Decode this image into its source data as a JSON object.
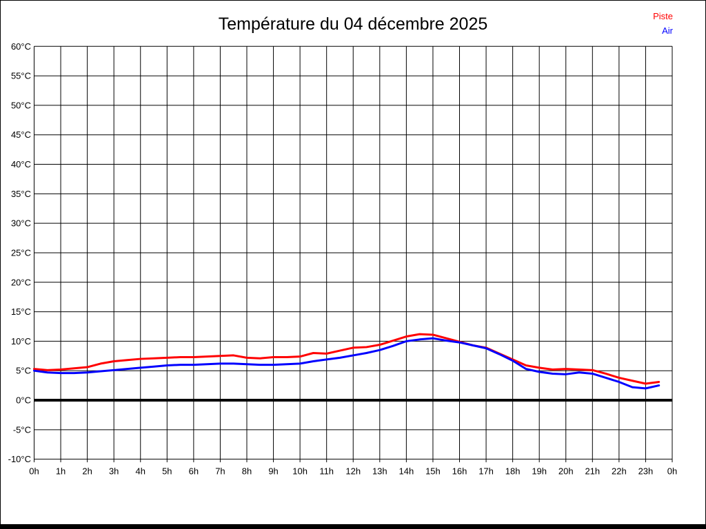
{
  "title": "Température du 04 décembre 2025",
  "legend": [
    {
      "label": "Piste",
      "color": "#ff0000"
    },
    {
      "label": "Air",
      "color": "#0000ff"
    }
  ],
  "colors": {
    "grid": "#000000",
    "zero_line": "#000000",
    "background": "#ffffff",
    "text": "#000000"
  },
  "chart_data": {
    "type": "line",
    "title": "Température du 04 décembre 2025",
    "xlabel": "",
    "ylabel": "",
    "xlim": [
      0,
      24
    ],
    "ylim": [
      -10,
      60
    ],
    "y_tick_step": 5,
    "grid": "on",
    "zero_line_bold": true,
    "legend_position": "top-right",
    "x_tick_labels": [
      "0h",
      "1h",
      "2h",
      "3h",
      "4h",
      "5h",
      "6h",
      "7h",
      "8h",
      "9h",
      "10h",
      "11h",
      "12h",
      "13h",
      "14h",
      "15h",
      "16h",
      "17h",
      "18h",
      "19h",
      "20h",
      "21h",
      "22h",
      "23h",
      "0h"
    ],
    "y_tick_labels": [
      "60°C",
      "55°C",
      "50°C",
      "45°C",
      "40°C",
      "35°C",
      "30°C",
      "25°C",
      "20°C",
      "15°C",
      "10°C",
      "5°C",
      "0°C",
      "-5°C",
      "-10°C"
    ],
    "x": [
      0,
      0.5,
      1,
      1.5,
      2,
      2.5,
      3,
      3.5,
      4,
      4.5,
      5,
      5.5,
      6,
      6.5,
      7,
      7.5,
      8,
      8.5,
      9,
      9.5,
      10,
      10.5,
      11,
      11.5,
      12,
      12.5,
      13,
      13.5,
      14,
      14.5,
      15,
      15.5,
      16,
      16.5,
      17,
      17.5,
      18,
      18.5,
      19,
      19.5,
      20,
      20.5,
      21,
      21.5,
      22,
      22.5,
      23,
      23.5
    ],
    "series": [
      {
        "name": "Piste",
        "color": "#ff0000",
        "values": [
          5.3,
          5.1,
          5.2,
          5.4,
          5.6,
          6.2,
          6.6,
          6.8,
          7.0,
          7.1,
          7.2,
          7.3,
          7.3,
          7.4,
          7.5,
          7.6,
          7.2,
          7.1,
          7.3,
          7.3,
          7.4,
          8.0,
          7.9,
          8.4,
          8.9,
          9.0,
          9.4,
          10.1,
          10.8,
          11.2,
          11.1,
          10.5,
          9.9,
          9.3,
          8.9,
          7.9,
          6.9,
          5.9,
          5.5,
          5.2,
          5.3,
          5.2,
          5.1,
          4.5,
          3.8,
          3.3,
          2.8,
          3.1
        ]
      },
      {
        "name": "Air",
        "color": "#0000ff",
        "values": [
          5.0,
          4.7,
          4.6,
          4.6,
          4.7,
          4.9,
          5.1,
          5.3,
          5.5,
          5.7,
          5.9,
          6.0,
          6.0,
          6.1,
          6.2,
          6.2,
          6.1,
          6.0,
          6.0,
          6.1,
          6.2,
          6.6,
          6.9,
          7.2,
          7.6,
          8.0,
          8.5,
          9.2,
          10.0,
          10.3,
          10.5,
          10.1,
          9.8,
          9.3,
          8.8,
          7.8,
          6.7,
          5.3,
          4.8,
          4.5,
          4.4,
          4.7,
          4.5,
          3.8,
          3.1,
          2.2,
          2.0,
          2.5
        ]
      }
    ]
  }
}
